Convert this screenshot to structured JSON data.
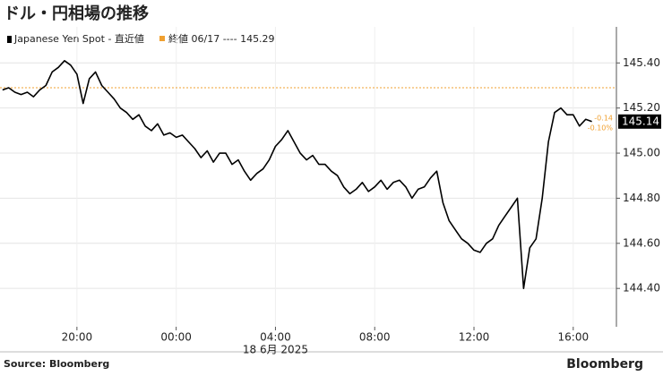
{
  "chart_data": {
    "type": "line",
    "title": "ドル・円相場の推移",
    "legend_marker": "Japanese Yen Spot - 直近値",
    "reference": {
      "label": "終値 06/17 ---- 145.29",
      "value": 145.29,
      "color": "#f0a030"
    },
    "date_label": "18 6月 2025",
    "source": "Source: Bloomberg",
    "brand": "Bloomberg",
    "annotations": [
      "-0.14",
      "-0.10%"
    ],
    "last_value": 145.14,
    "x": [
      -7,
      -6.75,
      -6.5,
      -6.25,
      -6,
      -5.75,
      -5.5,
      -5.25,
      -5,
      -4.75,
      -4.5,
      -4.25,
      -4,
      -3.75,
      -3.5,
      -3.25,
      -3,
      -2.75,
      -2.5,
      -2.25,
      -2,
      -1.75,
      -1.5,
      -1.25,
      -1,
      -0.75,
      -0.5,
      -0.25,
      0,
      0.25,
      0.5,
      0.75,
      1,
      1.25,
      1.5,
      1.75,
      2,
      2.25,
      2.5,
      2.75,
      3,
      3.25,
      3.5,
      3.75,
      4,
      4.25,
      4.5,
      4.75,
      5,
      5.25,
      5.5,
      5.75,
      6,
      6.25,
      6.5,
      6.75,
      7,
      7.25,
      7.5,
      7.75,
      8,
      8.25,
      8.5,
      8.75,
      9,
      9.25,
      9.5,
      9.75,
      10,
      10.25,
      10.5,
      10.75,
      11,
      11.25,
      11.5,
      11.75,
      12,
      12.25,
      12.5,
      12.75,
      13,
      13.25,
      13.5,
      13.75,
      14,
      14.25,
      14.5,
      14.75,
      15,
      15.25,
      15.5,
      15.75,
      16,
      16.25,
      16.5,
      16.75
    ],
    "series": [
      {
        "name": "Japanese Yen Spot - 直近値",
        "color": "#000000",
        "values": [
          145.28,
          145.29,
          145.27,
          145.26,
          145.27,
          145.25,
          145.28,
          145.3,
          145.36,
          145.38,
          145.41,
          145.39,
          145.35,
          145.22,
          145.33,
          145.36,
          145.3,
          145.27,
          145.24,
          145.2,
          145.18,
          145.15,
          145.17,
          145.12,
          145.1,
          145.13,
          145.08,
          145.09,
          145.07,
          145.08,
          145.05,
          145.02,
          144.98,
          145.01,
          144.96,
          145.0,
          145.0,
          144.95,
          144.97,
          144.92,
          144.88,
          144.91,
          144.93,
          144.97,
          145.03,
          145.06,
          145.1,
          145.05,
          145.0,
          144.97,
          144.99,
          144.95,
          144.95,
          144.92,
          144.9,
          144.85,
          144.82,
          144.84,
          144.87,
          144.83,
          144.85,
          144.88,
          144.84,
          144.87,
          144.88,
          144.85,
          144.8,
          144.84,
          144.85,
          144.89,
          144.92,
          144.78,
          144.7,
          144.66,
          144.62,
          144.6,
          144.57,
          144.56,
          144.6,
          144.62,
          144.68,
          144.72,
          144.76,
          144.8,
          144.4,
          144.58,
          144.62,
          144.8,
          145.05,
          145.18,
          145.2,
          145.17,
          145.17,
          145.12,
          145.15,
          145.14
        ]
      }
    ],
    "xlim": [
      -7.1,
      17.74
    ],
    "xticks": [
      {
        "value": -4,
        "label": "20:00"
      },
      {
        "value": 0,
        "label": "00:00"
      },
      {
        "value": 4,
        "label": "04:00"
      },
      {
        "value": 8,
        "label": "08:00"
      },
      {
        "value": 12,
        "label": "12:00"
      },
      {
        "value": 16,
        "label": "16:00"
      }
    ],
    "ylim": [
      144.23,
      145.56
    ],
    "yticks": [
      {
        "value": 144.4,
        "label": "144.40"
      },
      {
        "value": 144.6,
        "label": "144.60"
      },
      {
        "value": 144.8,
        "label": "144.80"
      },
      {
        "value": 145.0,
        "label": "145.00"
      },
      {
        "value": 145.2,
        "label": "145.20"
      },
      {
        "value": 145.4,
        "label": "145.40"
      }
    ],
    "grid": true
  }
}
